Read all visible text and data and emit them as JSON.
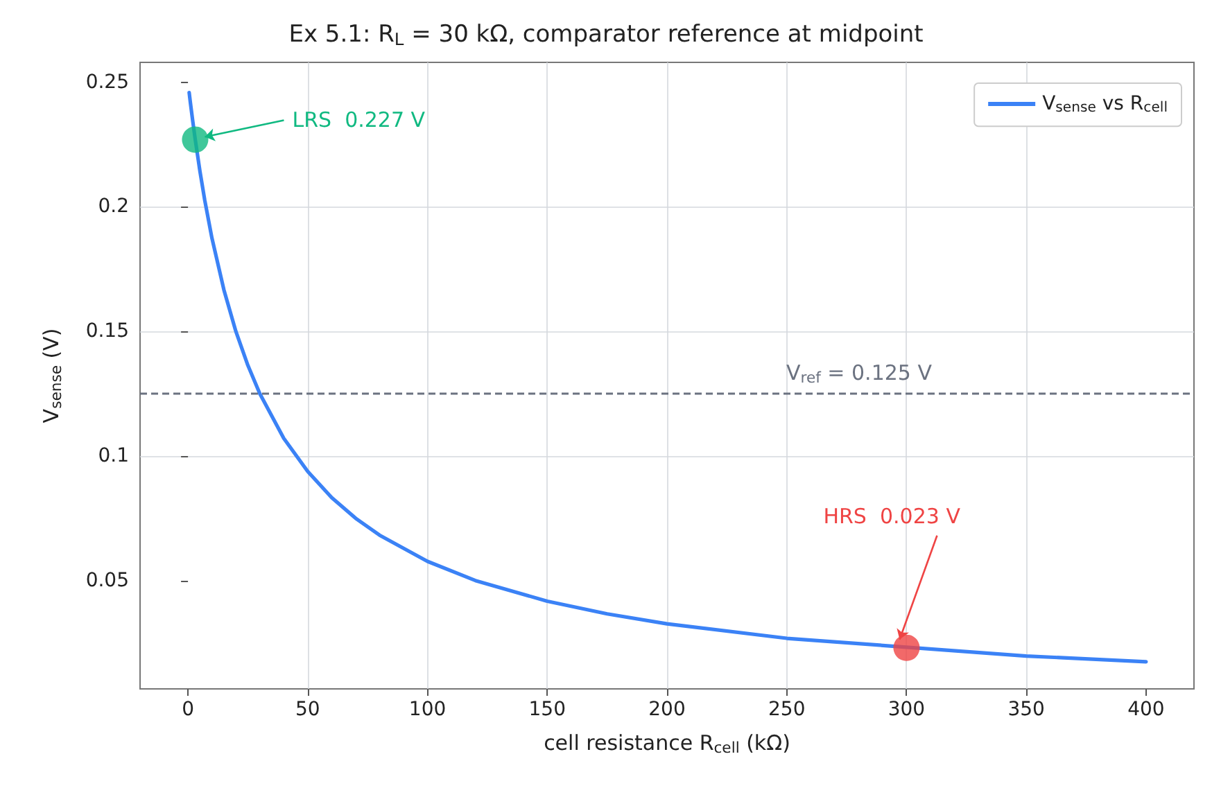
{
  "chart_data": {
    "type": "line",
    "title": "Ex 5.1: R$_{L}$ = 30 kΩ, comparator reference at midpoint",
    "xlabel": "cell resistance R$_{cell}$ (kΩ)",
    "ylabel": "V$_{sense}$ (V)",
    "xlim": [
      -20,
      420
    ],
    "xticks": [
      0,
      50,
      100,
      150,
      200,
      250,
      300,
      350,
      400
    ],
    "ylim": [
      0.0065,
      0.258
    ],
    "yticks": [
      0.05,
      0.1,
      0.15,
      0.2,
      0.25
    ],
    "grid": true,
    "legend": "top right",
    "marker": "none",
    "line_style": "solid",
    "series": [
      {
        "name": "V$_{sense}$ vs R$_{cell}$",
        "color": "#3b82f6",
        "x": [
          0.5,
          1,
          2,
          3,
          5,
          7,
          10,
          15,
          20,
          25,
          30,
          40,
          50,
          60,
          70,
          80,
          100,
          120,
          150,
          175,
          200,
          250,
          350,
          400
        ],
        "values": [
          0.2459,
          0.2419,
          0.2344,
          0.2273,
          0.2143,
          0.2027,
          0.1875,
          0.1667,
          0.15,
          0.1364,
          0.125,
          0.1071,
          0.0938,
          0.0833,
          0.075,
          0.0682,
          0.0577,
          0.05,
          0.0417,
          0.0366,
          0.0326,
          0.0268,
          0.0197,
          0.0174
        ]
      },
      {
        "type": "scatter",
        "marker": "circle",
        "x": [
          3,
          300
        ],
        "values": [
          0.227,
          0.023
        ],
        "colors": [
          "#10b981",
          "#ef4444"
        ]
      }
    ],
    "ref_lines": [
      {
        "axis": "y",
        "value": 0.125,
        "label": "V$_{ref}$ = 0.125 V",
        "color": "#6b7280",
        "line_style": "dashed"
      }
    ],
    "annotations": [
      {
        "text": "LRS  0.227 V",
        "x": 3,
        "y": 0.227
      },
      {
        "text": "HRS  0.023 V",
        "x": 300,
        "y": 0.023
      }
    ]
  }
}
